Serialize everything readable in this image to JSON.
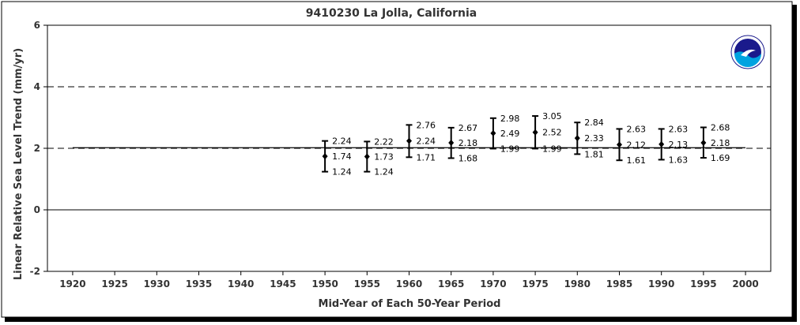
{
  "chart_data": {
    "type": "scatter",
    "title": "9410230 La Jolla, California",
    "xlabel": "Mid-Year of Each 50-Year Period",
    "ylabel": "Linear Relative Sea Level Trend (mm/yr)",
    "xlim": [
      1917,
      2003
    ],
    "ylim": [
      -2,
      6
    ],
    "xticks": [
      1920,
      1925,
      1930,
      1935,
      1940,
      1945,
      1950,
      1955,
      1960,
      1965,
      1970,
      1975,
      1980,
      1985,
      1990,
      1995,
      2000
    ],
    "yticks": [
      -2,
      0,
      2,
      4,
      6
    ],
    "reference_lines": [
      {
        "y": 4,
        "style": "dashed"
      },
      {
        "y": 2,
        "style": "dashed"
      },
      {
        "y": 0,
        "style": "solid"
      }
    ],
    "trend_line": {
      "x": [
        1920,
        2000
      ],
      "y": [
        2.02,
        2.02
      ]
    },
    "points": [
      {
        "x": 1950,
        "y": 1.74,
        "upper": 2.24,
        "lower": 1.24
      },
      {
        "x": 1955,
        "y": 1.73,
        "upper": 2.22,
        "lower": 1.24
      },
      {
        "x": 1960,
        "y": 2.24,
        "upper": 2.76,
        "lower": 1.71
      },
      {
        "x": 1965,
        "y": 2.18,
        "upper": 2.67,
        "lower": 1.68
      },
      {
        "x": 1970,
        "y": 2.49,
        "upper": 2.98,
        "lower": 1.99
      },
      {
        "x": 1975,
        "y": 2.52,
        "upper": 3.05,
        "lower": 1.99
      },
      {
        "x": 1980,
        "y": 2.33,
        "upper": 2.84,
        "lower": 1.81
      },
      {
        "x": 1985,
        "y": 2.12,
        "upper": 2.63,
        "lower": 1.61
      },
      {
        "x": 1990,
        "y": 2.13,
        "upper": 2.63,
        "lower": 1.63
      },
      {
        "x": 1995,
        "y": 2.18,
        "upper": 2.68,
        "lower": 1.69
      }
    ],
    "grid": false,
    "legend": "none"
  },
  "logo": {
    "text": "NOAA",
    "color_outer": "#1a1a8c",
    "color_inner": "#00a3e0"
  }
}
